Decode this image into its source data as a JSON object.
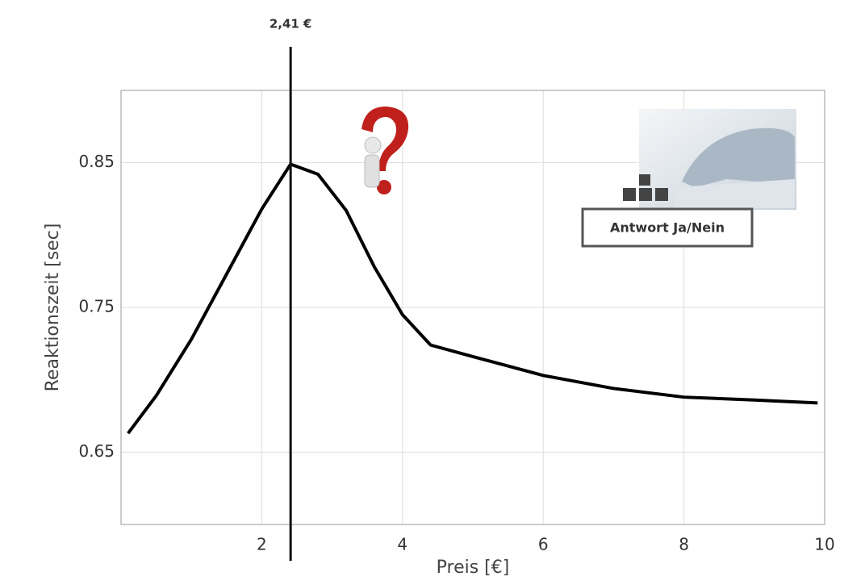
{
  "chart_data": {
    "type": "line",
    "x_label": "Preis [€]",
    "y_label": "Reaktionszeit [sec]",
    "x": [
      0.1,
      0.5,
      1.0,
      1.5,
      2.0,
      2.41,
      2.8,
      3.2,
      3.6,
      4.0,
      4.4,
      5,
      6,
      7,
      8,
      9,
      9.9
    ],
    "series": [
      {
        "color": "#000000",
        "values": [
          0.663,
          0.689,
          0.728,
          0.773,
          0.818,
          0.849,
          0.842,
          0.817,
          0.778,
          0.745,
          0.724,
          0.716,
          0.703,
          0.694,
          0.688,
          0.686,
          0.684
        ]
      }
    ],
    "xlim": [
      0,
      10
    ],
    "xticks": [
      2,
      4,
      6,
      8,
      10
    ],
    "ylim": [
      0.6,
      0.9
    ],
    "yticks": [
      0.65,
      0.75,
      0.85
    ],
    "grid": true,
    "annotations": [
      {
        "x": 2.41,
        "label": "2,41 €"
      },
      {
        "label": "Antwort Ja/Nein"
      }
    ]
  }
}
